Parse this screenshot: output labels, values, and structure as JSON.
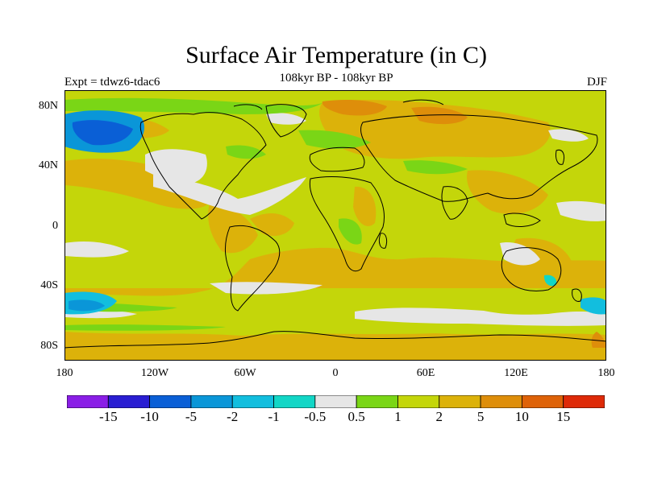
{
  "title": "Surface Air Temperature (in C)",
  "subtitle": "108kyr BP - 108kyr BP",
  "left_label": "Expt = tdwz6-tdac6",
  "right_label": "DJF",
  "lat_ticks": [
    "80N",
    "40N",
    "0",
    "40S",
    "80S"
  ],
  "lon_ticks": [
    "180",
    "120W",
    "60W",
    "0",
    "60E",
    "120E",
    "180"
  ],
  "colorbar": {
    "colors": [
      "#8a1ee6",
      "#2a1ed2",
      "#0a5fd6",
      "#0a96d8",
      "#12bede",
      "#12d6c6",
      "#e6e6e6",
      "#7ad616",
      "#c4d60a",
      "#dcb20a",
      "#de8e0a",
      "#de6208",
      "#de2a08"
    ],
    "labels": [
      "-15",
      "-10",
      "-5",
      "-2",
      "-1",
      "-0.5",
      "0.5",
      "1",
      "2",
      "5",
      "10",
      "15"
    ]
  },
  "legend_colors": {
    "land_outline": "#000000",
    "ocean_background": "#c4d60a"
  }
}
